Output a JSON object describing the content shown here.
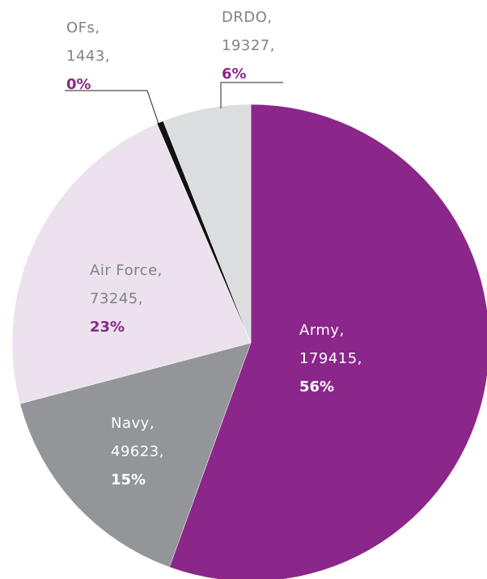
{
  "chart_data": {
    "type": "pie",
    "start_angle_deg": 0,
    "direction": "clockwise",
    "slices": [
      {
        "label": "Army",
        "value": 179415,
        "percent": "56%",
        "color": "#8b268b",
        "label_color": "#ffffff",
        "pct_color": "#ffffff"
      },
      {
        "label": "Navy",
        "value": 49623,
        "percent": "15%",
        "color": "#939598",
        "label_color": "#ffffff",
        "pct_color": "#ffffff"
      },
      {
        "label": "Air Force",
        "value": 73245,
        "percent": "23%",
        "color": "#ece2ee",
        "label_color": "#808285",
        "pct_color": "#8b268b"
      },
      {
        "label": "OFs",
        "value": 1443,
        "percent": "0%",
        "color": "#111111",
        "label_color": "#808285",
        "pct_color": "#8b268b"
      },
      {
        "label": "DRDO",
        "value": 19327,
        "percent": "6%",
        "color": "#dcdddf",
        "label_color": "#808285",
        "pct_color": "#8b268b"
      }
    ]
  }
}
